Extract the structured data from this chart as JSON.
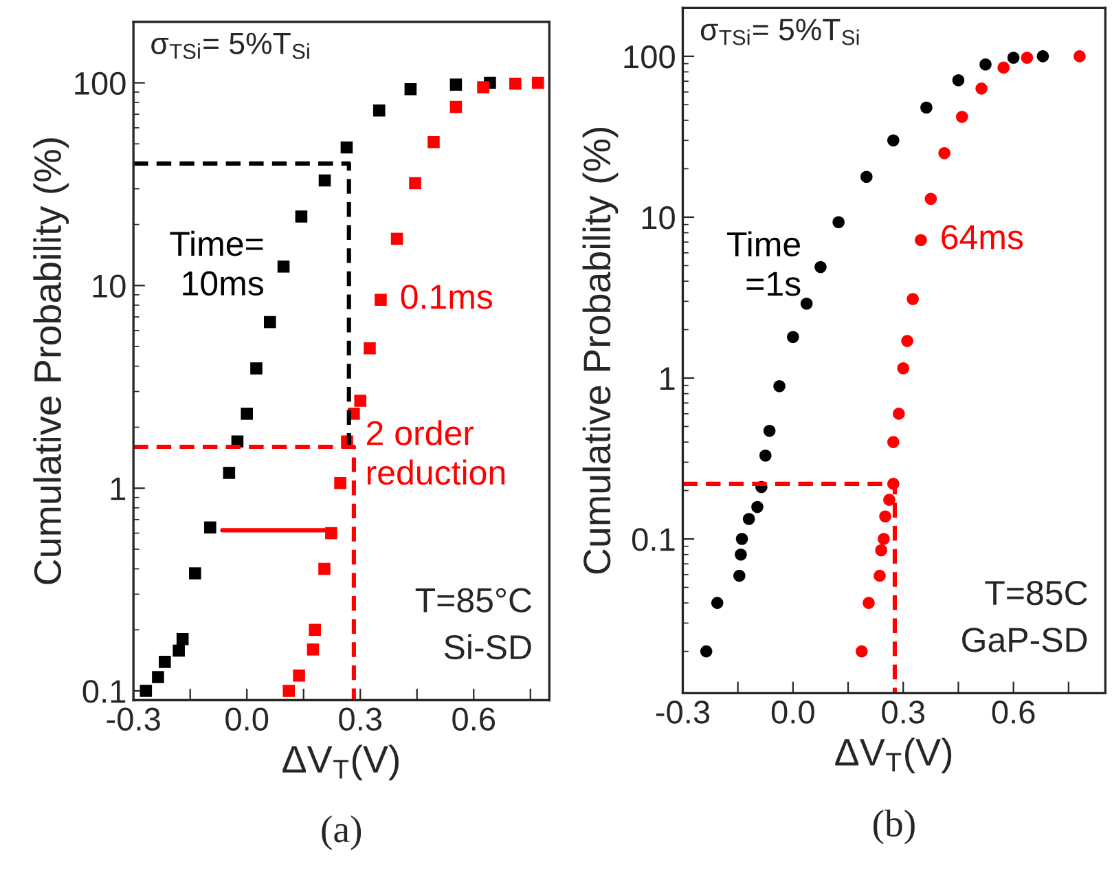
{
  "chart_data": [
    {
      "type": "scatter",
      "title": "(a)",
      "xlabel": "ΔV$_{T}$(V)",
      "ylabel": "Cumulative Probability (%)",
      "log": "y",
      "grid": false,
      "legend": false,
      "xlim": [
        -0.3,
        0.8
      ],
      "ylim": [
        0.09,
        200
      ],
      "xticks": [
        -0.3,
        {
          "value": -0.15,
          "label": null
        },
        {
          "value": 0,
          "label": "0.0"
        },
        {
          "value": 0.15,
          "label": null
        },
        0.3,
        {
          "value": 0.45,
          "label": null
        },
        0.6,
        {
          "value": 0.75,
          "label": null
        }
      ],
      "yticks": [
        0.1,
        1,
        10,
        100
      ],
      "annotations": [
        "σ$_{TSi}$= 5%T$_{Si}$",
        "T=85°C\nSi-SD"
      ],
      "series": [
        {
          "name": "Time=\n10ms",
          "marker": "square",
          "color": "#000000",
          "x": [
            -0.267,
            -0.235,
            -0.217,
            -0.18,
            -0.17,
            -0.137,
            -0.097,
            -0.047,
            -0.025,
            0.0,
            0.025,
            0.061,
            0.097,
            0.144,
            0.206,
            0.264,
            0.35,
            0.433,
            0.553,
            0.643
          ],
          "values": [
            0.1,
            0.117,
            0.139,
            0.158,
            0.18,
            0.38,
            0.64,
            1.19,
            1.7,
            2.33,
            3.9,
            6.6,
            12.4,
            21.9,
            33,
            48,
            73,
            93,
            98,
            100
          ]
        },
        {
          "name": "0.1ms",
          "marker": "square",
          "color": "#ff0000",
          "x": [
            0.111,
            0.138,
            0.175,
            0.18,
            0.205,
            0.223,
            0.247,
            0.265,
            0.283,
            0.3,
            0.325,
            0.354,
            0.397,
            0.445,
            0.494,
            0.553,
            0.625,
            0.71,
            0.77
          ],
          "values": [
            0.1,
            0.119,
            0.16,
            0.2,
            0.4,
            0.6,
            1.06,
            1.7,
            2.33,
            2.7,
            4.9,
            8.5,
            17,
            32,
            51,
            76,
            95,
            99,
            100
          ]
        },
        {
          "type": "line",
          "line_style": "dashed",
          "color": "#000000",
          "x": [
            -0.3,
            0.27,
            0.27
          ],
          "values": [
            40,
            40,
            1.6
          ]
        },
        {
          "type": "line",
          "line_style": "dashed",
          "name": "2 order\nreduction",
          "color": "#ff0000",
          "x": [
            -0.3,
            0.283,
            0.283
          ],
          "values": [
            1.6,
            1.6,
            0.09
          ]
        },
        {
          "type": "line",
          "line_style": "solid",
          "color": "#ff0000",
          "x": [
            -0.065,
            0.223
          ],
          "values": [
            0.62,
            0.62
          ]
        }
      ]
    },
    {
      "type": "scatter",
      "title": "(b)",
      "xlabel": "ΔV$_{T}$(V)",
      "ylabel": "Cumulative Probability (%)",
      "log": "y",
      "grid": false,
      "legend": false,
      "xlim": [
        -0.3,
        0.85
      ],
      "ylim": [
        0.011,
        200
      ],
      "xticks": [
        -0.3,
        {
          "value": -0.15,
          "label": null
        },
        {
          "value": 0,
          "label": "0.0"
        },
        {
          "value": 0.15,
          "label": null
        },
        0.3,
        {
          "value": 0.45,
          "label": null
        },
        0.6,
        {
          "value": 0.75,
          "label": null
        }
      ],
      "yticks": [
        0.1,
        1,
        10,
        100
      ],
      "annotations": [
        "σ$_{TSi}$= 5%T$_{Si}$",
        "T=85C\nGaP-SD"
      ],
      "series": [
        {
          "name": "Time\n=1s",
          "marker": "circle",
          "color": "#000000",
          "x": [
            -0.236,
            -0.206,
            -0.146,
            -0.142,
            -0.139,
            -0.12,
            -0.097,
            -0.086,
            -0.075,
            -0.064,
            -0.037,
            0.0,
            0.037,
            0.075,
            0.124,
            0.2,
            0.273,
            0.363,
            0.45,
            0.524,
            0.6,
            0.68
          ],
          "values": [
            0.02,
            0.04,
            0.059,
            0.08,
            0.1,
            0.133,
            0.158,
            0.21,
            0.33,
            0.47,
            0.89,
            1.8,
            2.9,
            4.9,
            9.3,
            17.8,
            30,
            48,
            71,
            89,
            98,
            100
          ]
        },
        {
          "name": "64ms",
          "marker": "circle",
          "color": "#ff0000",
          "x": [
            0.187,
            0.206,
            0.236,
            0.24,
            0.247,
            0.251,
            0.262,
            0.273,
            0.273,
            0.288,
            0.3,
            0.311,
            0.326,
            0.348,
            0.375,
            0.412,
            0.46,
            0.513,
            0.573,
            0.637,
            0.78
          ],
          "values": [
            0.02,
            0.04,
            0.059,
            0.085,
            0.1,
            0.138,
            0.175,
            0.22,
            0.4,
            0.6,
            1.15,
            1.7,
            3.1,
            7.2,
            13,
            25,
            42,
            63,
            85,
            98,
            100
          ]
        },
        {
          "type": "line",
          "line_style": "dashed",
          "color": "#ff0000",
          "x": [
            -0.3,
            0.277,
            0.277
          ],
          "values": [
            0.22,
            0.22,
            0.011
          ]
        }
      ]
    }
  ]
}
